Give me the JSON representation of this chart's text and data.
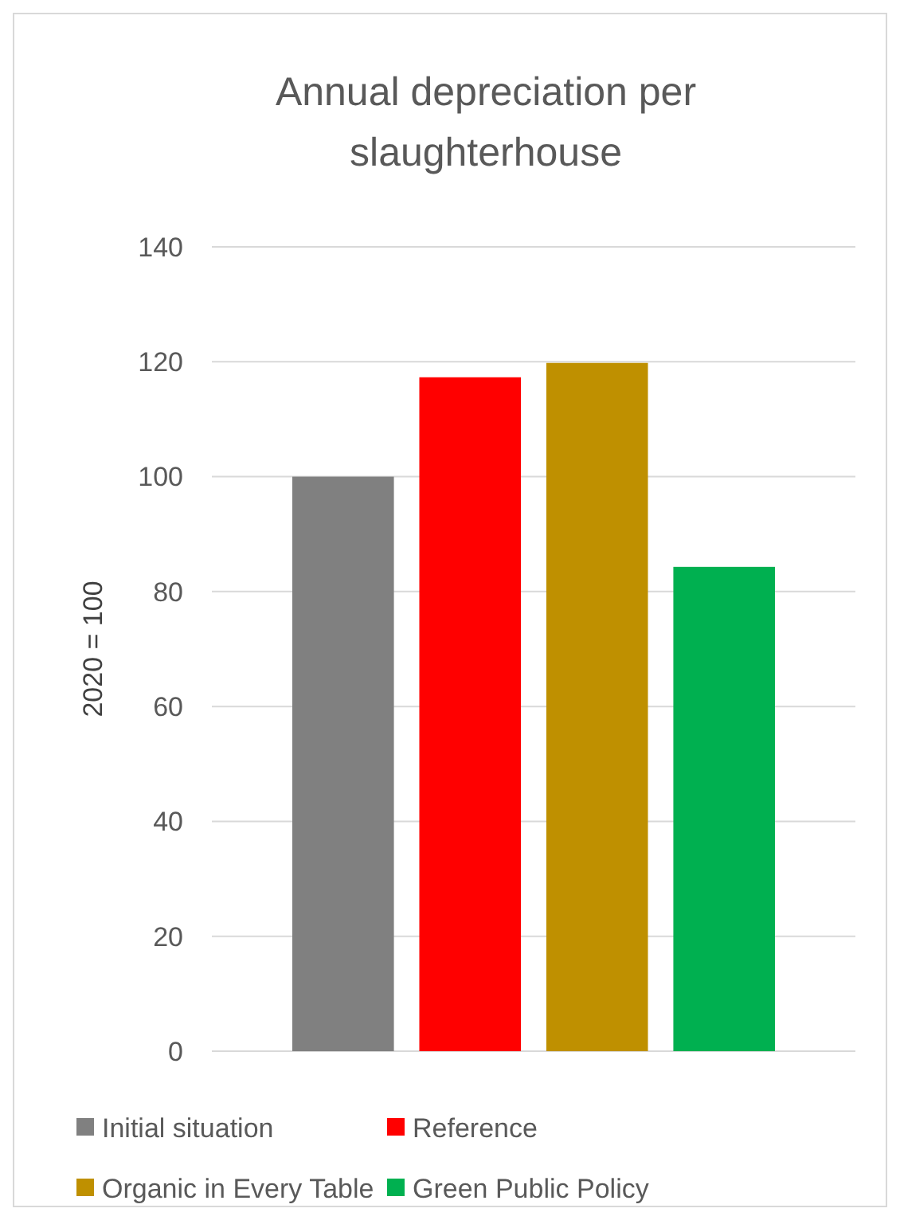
{
  "chart_data": {
    "type": "bar",
    "title": "Annual depreciation per slaughterhouse",
    "ylabel": "2020 = 100",
    "categories": [
      null
    ],
    "series": [
      {
        "name": "Initial situation",
        "color": "#808080",
        "values": [
          100
        ]
      },
      {
        "name": "Reference",
        "color": "#ff0000",
        "values": [
          117.3
        ]
      },
      {
        "name": "Organic in Every Table",
        "color": "#bf9000",
        "values": [
          119.8
        ]
      },
      {
        "name": "Green Public Policy",
        "color": "#00b050",
        "values": [
          84.3
        ]
      }
    ],
    "ylim": [
      0,
      140
    ],
    "yticks": [
      0,
      20,
      40,
      60,
      80,
      100,
      120,
      140
    ],
    "grid": "y",
    "legend": "bottom"
  }
}
